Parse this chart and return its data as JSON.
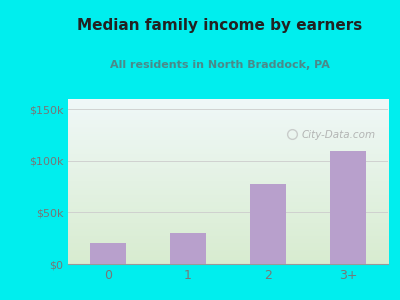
{
  "categories": [
    "0",
    "1",
    "2",
    "3+"
  ],
  "values": [
    20000,
    30000,
    78000,
    110000
  ],
  "bar_color": "#b8a0cc",
  "title": "Median family income by earners",
  "subtitle": "All residents in North Braddock, PA",
  "title_color": "#222222",
  "subtitle_color": "#4a8a8a",
  "outer_bg": "#00EEEE",
  "plot_bg_top": "#f0f8f8",
  "plot_bg_bottom": "#d8ecd0",
  "yticks": [
    0,
    50000,
    100000,
    150000
  ],
  "ytick_labels": [
    "$0",
    "$50k",
    "$100k",
    "$150k"
  ],
  "ylim": [
    0,
    160000
  ],
  "watermark": "City-Data.com",
  "grid_color": "#cccccc",
  "tick_color": "#777777"
}
